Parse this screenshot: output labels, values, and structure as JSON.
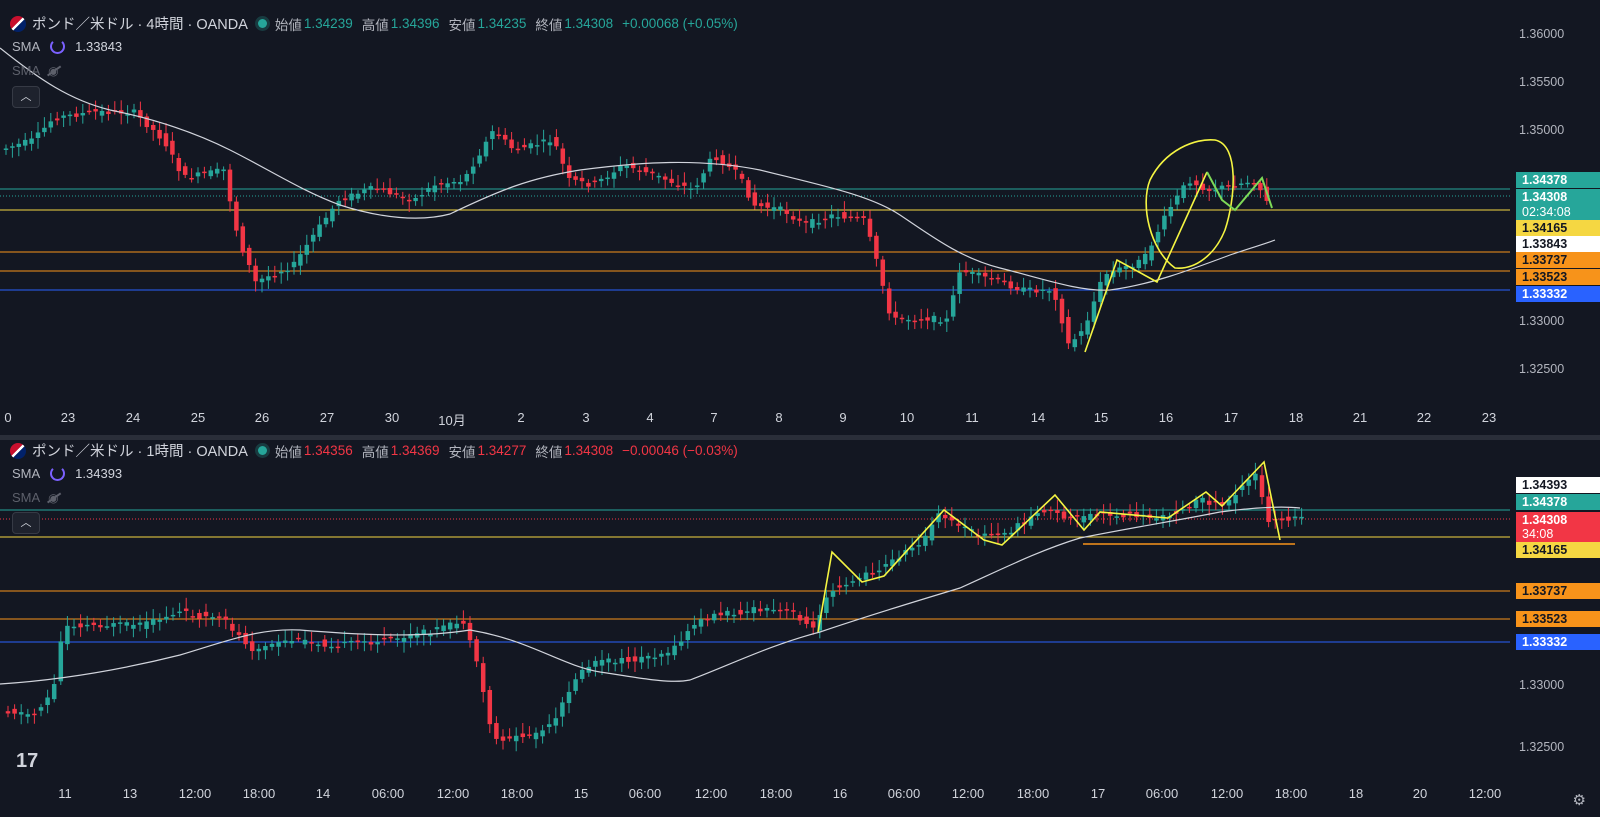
{
  "top": {
    "symbol": "ポンド／米ドル · 4時間 · OANDA",
    "ohlc": {
      "open_label": "始値",
      "open": "1.34239",
      "high_label": "高値",
      "high": "1.34396",
      "low_label": "安値",
      "low": "1.34235",
      "close_label": "終値",
      "close": "1.34308",
      "change": "+0.00068 (+0.05%)"
    },
    "sma1_label": "SMA",
    "sma1_value": "1.33843",
    "sma2_label": "SMA",
    "collapse_icon": "chevron-up-icon",
    "y_axis": [
      "1.36000",
      "1.35500",
      "1.35000",
      "1.33000",
      "1.32500"
    ],
    "x_axis": [
      "0",
      "23",
      "24",
      "25",
      "26",
      "27",
      "30",
      "10月",
      "2",
      "3",
      "4",
      "7",
      "8",
      "9",
      "10",
      "11",
      "14",
      "15",
      "16",
      "17",
      "18",
      "21",
      "22",
      "23"
    ],
    "price_tags": [
      {
        "text": "1.34378",
        "color": "#26a69a"
      },
      {
        "text": "1.34308",
        "color": "#26a69a"
      },
      {
        "text": "02:34:08",
        "color": "#26a69a"
      },
      {
        "text": "1.34165",
        "color": "#f5d742"
      },
      {
        "text": "1.33843",
        "color": "#ffffff"
      },
      {
        "text": "1.33737",
        "color": "#f7931a"
      },
      {
        "text": "1.33523",
        "color": "#f7931a"
      },
      {
        "text": "1.33332",
        "color": "#2962ff"
      }
    ]
  },
  "bottom": {
    "symbol": "ポンド／米ドル · 1時間 · OANDA",
    "ohlc": {
      "open_label": "始値",
      "open": "1.34356",
      "high_label": "高値",
      "high": "1.34369",
      "low_label": "安値",
      "low": "1.34277",
      "close_label": "終値",
      "close": "1.34308",
      "change": "−0.00046 (−0.03%)"
    },
    "sma1_label": "SMA",
    "sma1_value": "1.34393",
    "sma2_label": "SMA",
    "collapse_icon": "chevron-up-icon",
    "y_axis": [
      "1.33000",
      "1.32500"
    ],
    "x_axis": [
      "11",
      "13",
      "12:00",
      "18:00",
      "14",
      "06:00",
      "12:00",
      "18:00",
      "15",
      "06:00",
      "12:00",
      "18:00",
      "16",
      "06:00",
      "12:00",
      "18:00",
      "17",
      "06:00",
      "12:00",
      "18:00",
      "18",
      "20",
      "12:00"
    ],
    "price_tags": [
      {
        "text": "1.34393",
        "color": "#ffffff"
      },
      {
        "text": "1.34378",
        "color": "#26a69a"
      },
      {
        "text": "1.34308",
        "color": "#f23645"
      },
      {
        "text": "34:08",
        "color": "#f23645"
      },
      {
        "text": "1.34165",
        "color": "#f5d742"
      },
      {
        "text": "1.33737",
        "color": "#f7931a"
      },
      {
        "text": "1.33523",
        "color": "#f7931a"
      },
      {
        "text": "1.33332",
        "color": "#2962ff"
      }
    ]
  },
  "branding": {
    "logo": "17",
    "settings_icon": "gear-icon"
  },
  "colors": {
    "up": "#26a69a",
    "down": "#f23645",
    "sma": "#d1d4dc",
    "drawing": "#f5f542",
    "drawing_green": "#7ed957"
  }
}
